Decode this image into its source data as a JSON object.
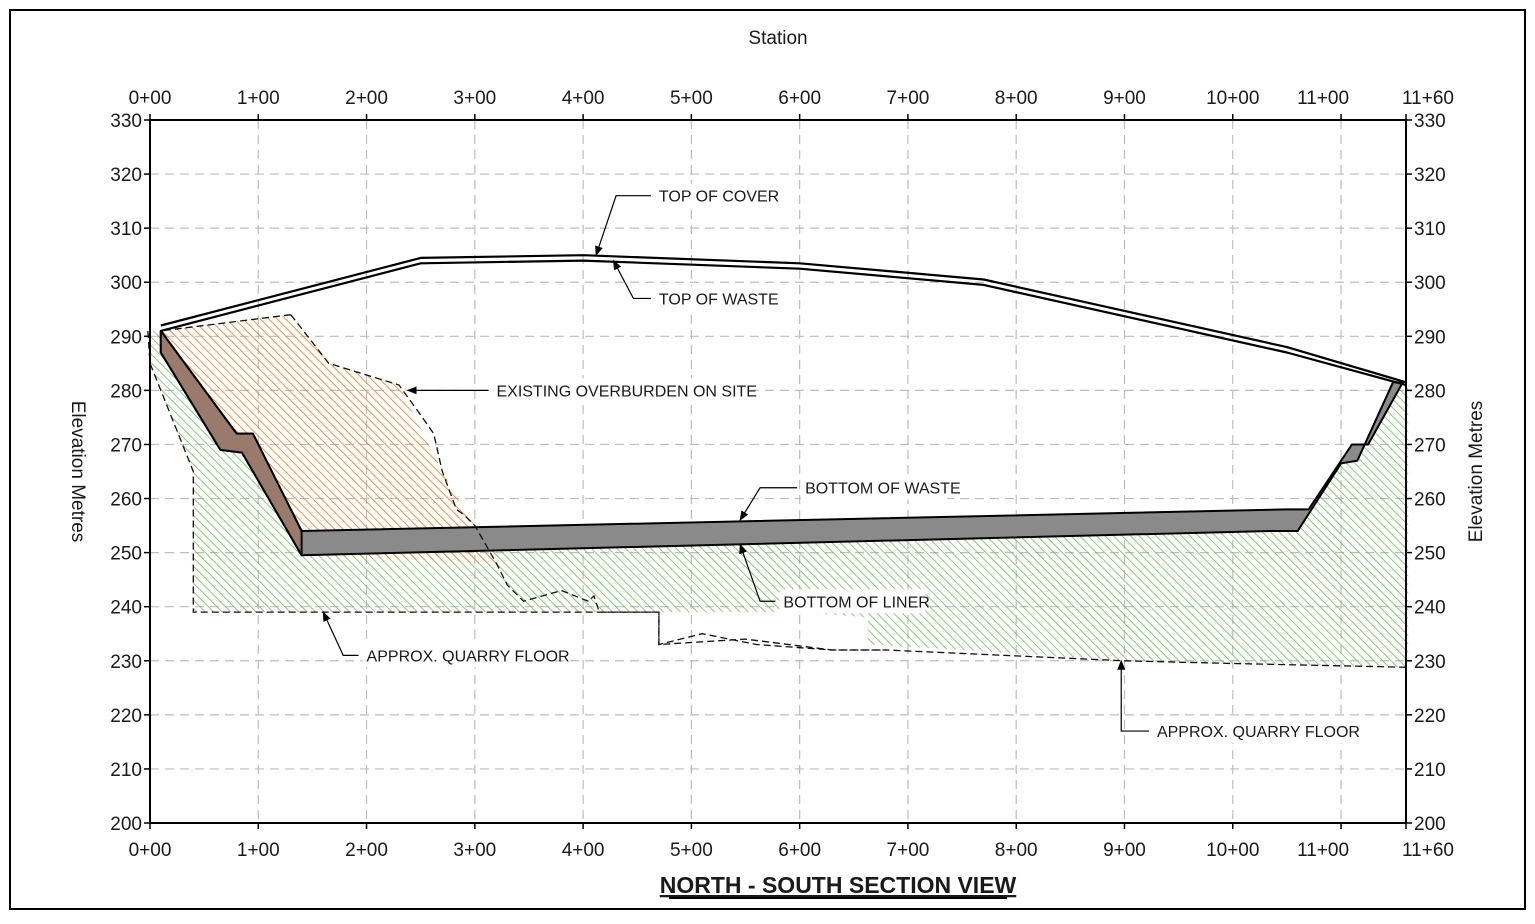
{
  "chart_data": {
    "type": "section-profile",
    "title": "NORTH - SOUTH SECTION VIEW",
    "xlabel": "Station",
    "ylabel_left": "Elevation Metres",
    "ylabel_right": "Elevation Metres",
    "xlim": [
      0,
      1160
    ],
    "ylim": [
      200,
      330
    ],
    "x_ticks": [
      {
        "value": 0,
        "label": "0+00"
      },
      {
        "value": 100,
        "label": "1+00"
      },
      {
        "value": 200,
        "label": "2+00"
      },
      {
        "value": 300,
        "label": "3+00"
      },
      {
        "value": 400,
        "label": "4+00"
      },
      {
        "value": 500,
        "label": "5+00"
      },
      {
        "value": 600,
        "label": "6+00"
      },
      {
        "value": 700,
        "label": "7+00"
      },
      {
        "value": 800,
        "label": "8+00"
      },
      {
        "value": 900,
        "label": "9+00"
      },
      {
        "value": 1000,
        "label": "10+00"
      },
      {
        "value": 1100,
        "label": "11+00"
      },
      {
        "value": 1160,
        "label": "11+60"
      }
    ],
    "y_ticks": [
      {
        "value": 200,
        "label": "200"
      },
      {
        "value": 210,
        "label": "210"
      },
      {
        "value": 220,
        "label": "220"
      },
      {
        "value": 230,
        "label": "230"
      },
      {
        "value": 240,
        "label": "240"
      },
      {
        "value": 250,
        "label": "250"
      },
      {
        "value": 260,
        "label": "260"
      },
      {
        "value": 270,
        "label": "270"
      },
      {
        "value": 280,
        "label": "280"
      },
      {
        "value": 290,
        "label": "290"
      },
      {
        "value": 300,
        "label": "300"
      },
      {
        "value": 310,
        "label": "310"
      },
      {
        "value": 320,
        "label": "320"
      },
      {
        "value": 330,
        "label": "330"
      }
    ],
    "grid": true,
    "colors": {
      "overburden": "#e8893a",
      "quarry": "#6fba5a",
      "liner": "#8a8a8a",
      "liner_left_slope": "#9a7a6c",
      "cover": "#000000"
    },
    "profiles": {
      "top_of_cover": [
        [
          10,
          292
        ],
        [
          250,
          304.5
        ],
        [
          400,
          305
        ],
        [
          600,
          303.5
        ],
        [
          770,
          300.5
        ],
        [
          1050,
          288
        ],
        [
          1160,
          281.5
        ]
      ],
      "top_of_waste": [
        [
          10,
          291
        ],
        [
          250,
          303.5
        ],
        [
          400,
          304
        ],
        [
          600,
          302.5
        ],
        [
          770,
          299.5
        ],
        [
          1050,
          287
        ],
        [
          1160,
          281
        ]
      ],
      "liner_top": [
        [
          10,
          291
        ],
        [
          80,
          272
        ],
        [
          95,
          272
        ],
        [
          140,
          254
        ],
        [
          1050,
          258
        ],
        [
          1070,
          258
        ],
        [
          1110,
          270
        ],
        [
          1125,
          270
        ],
        [
          1157,
          281.5
        ]
      ],
      "liner_bottom": [
        [
          10,
          287
        ],
        [
          65,
          269
        ],
        [
          85,
          268.5
        ],
        [
          140,
          249.5
        ],
        [
          1035,
          254
        ],
        [
          1060,
          254
        ],
        [
          1100,
          266.5
        ],
        [
          1115,
          267
        ],
        [
          1148,
          281.5
        ]
      ],
      "overburden": [
        [
          10,
          291
        ],
        [
          130,
          294
        ],
        [
          165,
          285
        ],
        [
          230,
          281
        ],
        [
          270,
          265
        ],
        [
          290,
          258
        ],
        [
          300,
          255
        ],
        [
          320,
          248
        ],
        [
          140,
          249.5
        ],
        [
          85,
          268.5
        ],
        [
          65,
          269
        ],
        [
          10,
          287
        ]
      ],
      "quarry_fill": [
        [
          -2,
          291
        ],
        [
          10,
          291
        ],
        [
          10,
          287
        ],
        [
          65,
          269
        ],
        [
          85,
          268.5
        ],
        [
          140,
          249.5
        ],
        [
          1035,
          254
        ],
        [
          1060,
          254
        ],
        [
          1100,
          266.5
        ],
        [
          1115,
          267
        ],
        [
          1148,
          281.5
        ],
        [
          1162,
          281.5
        ],
        [
          1162,
          228.8
        ],
        [
          1000,
          229.5
        ],
        [
          900,
          230
        ],
        [
          750,
          232
        ],
        [
          663,
          233
        ],
        [
          663,
          238
        ],
        [
          600,
          239
        ],
        [
          570,
          239
        ],
        [
          415,
          239
        ],
        [
          40,
          239
        ],
        [
          40,
          265
        ],
        [
          0,
          285
        ]
      ],
      "existing_ground": [
        [
          -2,
          291
        ],
        [
          0,
          285
        ],
        [
          40,
          265
        ],
        [
          40,
          239
        ],
        [
          470,
          239
        ],
        [
          470,
          233
        ],
        [
          550,
          234
        ],
        [
          630,
          232
        ],
        [
          680,
          232
        ],
        [
          900,
          230
        ],
        [
          1000,
          229.5
        ],
        [
          1162,
          228.8
        ]
      ],
      "rock_edge": [
        [
          130,
          294
        ],
        [
          165,
          285
        ],
        [
          230,
          281
        ],
        [
          248,
          276
        ],
        [
          262,
          272
        ],
        [
          270,
          265
        ],
        [
          283,
          258
        ],
        [
          290,
          257
        ],
        [
          300,
          255
        ],
        [
          320,
          248
        ],
        [
          330,
          244
        ],
        [
          345,
          241
        ],
        [
          380,
          243
        ],
        [
          405,
          241
        ],
        [
          410,
          242
        ],
        [
          415,
          239
        ],
        [
          470,
          239
        ],
        [
          470,
          233
        ],
        [
          510,
          235
        ],
        [
          560,
          233
        ],
        [
          630,
          232
        ],
        [
          680,
          232
        ]
      ]
    },
    "annotations": [
      {
        "text": "TOP OF COVER",
        "point": [
          412,
          305
        ],
        "label_pos": [
          470,
          316
        ]
      },
      {
        "text": "TOP OF WASTE",
        "point": [
          428,
          304
        ],
        "label_pos": [
          470,
          297
        ]
      },
      {
        "text": "EXISTING OVERBURDEN ON SITE",
        "point": [
          238,
          280
        ],
        "label_pos": [
          320,
          280
        ]
      },
      {
        "text": "BOTTOM OF WASTE",
        "point": [
          545,
          256
        ],
        "label_pos": [
          605,
          262
        ]
      },
      {
        "text": "BOTTOM OF LINER",
        "point": [
          545,
          251.5
        ],
        "label_pos": [
          585,
          241
        ]
      },
      {
        "text": "APPROX. QUARRY FLOOR",
        "point": [
          160,
          239
        ],
        "label_pos": [
          200,
          231
        ]
      },
      {
        "text": "APPROX. QUARRY FLOOR",
        "point": [
          897,
          230
        ],
        "label_pos": [
          930,
          217
        ]
      }
    ]
  }
}
